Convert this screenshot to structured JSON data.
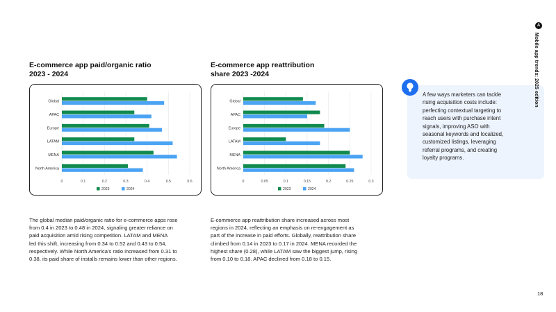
{
  "colors": {
    "y2023": "#118a4e",
    "y2024": "#4aa3f3"
  },
  "chart_data": [
    {
      "type": "bar",
      "orientation": "horizontal",
      "title": [
        "E-commerce app paid/organic ratio",
        "2023 - 2024"
      ],
      "categories": [
        "Global",
        "APAC",
        "Europe",
        "LATAM",
        "MENA",
        "North America"
      ],
      "series": [
        {
          "name": "2023",
          "values": [
            0.4,
            0.34,
            0.41,
            0.34,
            0.43,
            0.31
          ]
        },
        {
          "name": "2024",
          "values": [
            0.48,
            0.42,
            0.47,
            0.52,
            0.54,
            0.38
          ]
        }
      ],
      "xlim": [
        0,
        0.6
      ],
      "xticks": [
        0,
        0.1,
        0.2,
        0.3,
        0.4,
        0.5,
        0.6
      ],
      "legend_position": "bottom-center"
    },
    {
      "type": "bar",
      "orientation": "horizontal",
      "title": [
        "E-commerce app reattribution",
        "share 2023 -2024"
      ],
      "categories": [
        "Global",
        "APAC",
        "Europe",
        "LATAM",
        "MENA",
        "North America"
      ],
      "series": [
        {
          "name": "2023",
          "values": [
            0.14,
            0.18,
            0.19,
            0.1,
            0.25,
            0.24
          ]
        },
        {
          "name": "2024",
          "values": [
            0.17,
            0.15,
            0.25,
            0.18,
            0.28,
            0.26
          ]
        }
      ],
      "xlim": [
        0,
        0.3
      ],
      "xticks": [
        0,
        0.05,
        0.1,
        0.15,
        0.2,
        0.25,
        0.3
      ],
      "legend_position": "bottom-center"
    }
  ],
  "paragraphs": {
    "left": [
      "The global median paid/organic ratio for e-commerce apps rose",
      "from 0.4 in 2023 to 0.48 in 2024, signaling greater reliance on",
      "paid acquisition amid rising competition. LATAM and MENA",
      "led this shift, increasing from 0.34 to 0.52 and 0.43 to 0.54,",
      "respectively. While North America's ratio increased from 0.31 to",
      "0.38, its paid share of installs remains lower than other regions."
    ],
    "right": [
      "E-commerce app reattribution share increased across most",
      "regions in 2024, reflecting an emphasis on re-engagement as",
      "part of the increase in paid efforts. Globally, reattribution share",
      "climbed from 0.14 in 2023 to 0.17 in 2024. MENA recorded the",
      "highest share (0.28), while LATAM saw the biggest jump, rising",
      "from 0.10 to 0.18. APAC declined from 0.18 to 0.15."
    ]
  },
  "tip": {
    "icon": "lightbulb-icon",
    "lines": [
      "A few ways marketers can tackle",
      "rising acquisition costs include:",
      "perfecting contextual targeting to",
      "reach users with purchase intent",
      "signals, improving ASO with",
      "seasonal keywords and localized,",
      "customized listings, leveraging",
      "referral programs, and creating",
      "loyalty programs."
    ]
  },
  "side_label": "Mobile app trends: 2025 edition",
  "page_number": "18"
}
